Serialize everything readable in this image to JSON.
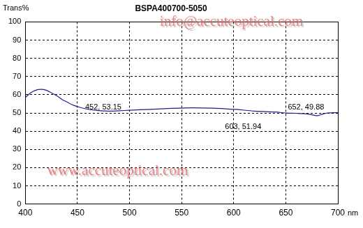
{
  "chart_data": {
    "type": "line",
    "title": "BSPA400700-5050",
    "x_label": "nm",
    "y_label": "Trans%",
    "x": [
      400,
      405,
      410,
      415,
      420,
      425,
      430,
      435,
      440,
      445,
      450,
      452,
      460,
      470,
      480,
      490,
      500,
      520,
      540,
      560,
      580,
      600,
      603,
      620,
      640,
      652,
      660,
      670,
      675,
      680,
      685,
      690,
      700
    ],
    "values": [
      58.5,
      61,
      62.5,
      63,
      62.5,
      61,
      59.5,
      57.5,
      56,
      54.5,
      53.5,
      53.15,
      52,
      51.3,
      51,
      51.2,
      51.5,
      52,
      52.5,
      52.8,
      52.6,
      52,
      51.94,
      51,
      50.5,
      49.88,
      49.8,
      49.5,
      49,
      48.5,
      49.3,
      50,
      50.2
    ],
    "color": "#1f1f8c",
    "xlim": [
      400,
      700
    ],
    "xticks": [
      400,
      450,
      500,
      550,
      600,
      650,
      700
    ],
    "ylim": [
      0,
      100
    ],
    "yticks": [
      0,
      10,
      20,
      30,
      40,
      50,
      60,
      70,
      80,
      90,
      100
    ],
    "grid": true,
    "annotations": [
      {
        "x": 452,
        "y": 53.15,
        "text": "452, 53.15"
      },
      {
        "x": 603,
        "y": 51.94,
        "text": "603, 51.94"
      },
      {
        "x": 652,
        "y": 49.88,
        "text": "652, 49.88"
      }
    ],
    "watermarks": [
      "info@accuteoptical.com",
      "www.accuteoptical.com"
    ]
  }
}
